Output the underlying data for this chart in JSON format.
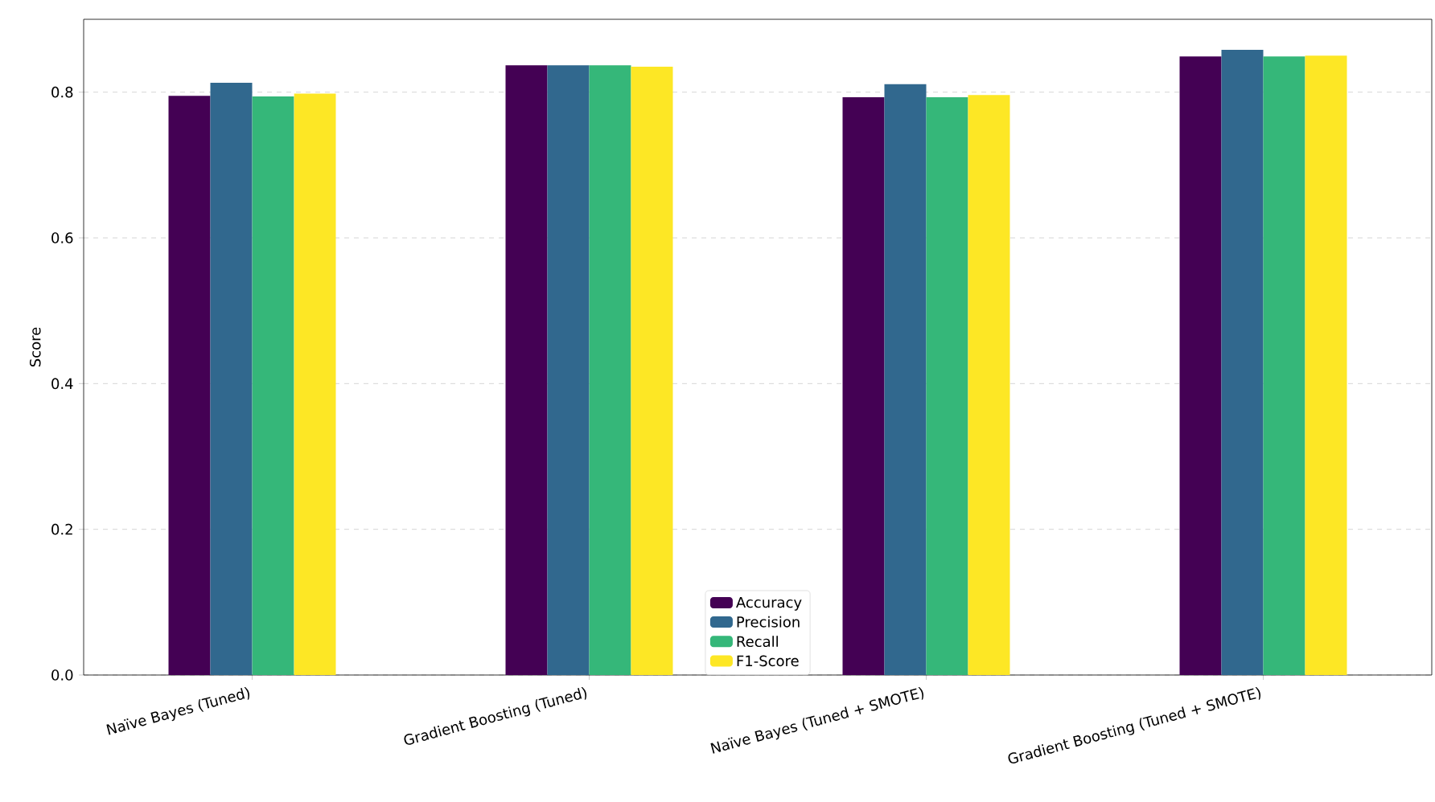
{
  "chart_data": {
    "type": "bar",
    "ylabel": "Score",
    "categories": [
      "Naïve Bayes (Tuned)",
      "Gradient Boosting (Tuned)",
      "Naïve Bayes (Tuned + SMOTE)",
      "Gradient Boosting (Tuned + SMOTE)"
    ],
    "series": [
      {
        "name": "Accuracy",
        "color": "#440154",
        "values": [
          0.795,
          0.837,
          0.793,
          0.849
        ]
      },
      {
        "name": "Precision",
        "color": "#31688e",
        "values": [
          0.813,
          0.837,
          0.811,
          0.858
        ]
      },
      {
        "name": "Recall",
        "color": "#35b779",
        "values": [
          0.794,
          0.837,
          0.793,
          0.849
        ]
      },
      {
        "name": "F1-Score",
        "color": "#fde725",
        "values": [
          0.798,
          0.835,
          0.796,
          0.85
        ]
      }
    ],
    "ylim": [
      0,
      0.9
    ],
    "yticks": [
      {
        "value": 0,
        "label": "0.0"
      },
      0.2,
      0.4,
      0.6,
      0.8
    ],
    "grid": "y",
    "legend": "bottom"
  }
}
